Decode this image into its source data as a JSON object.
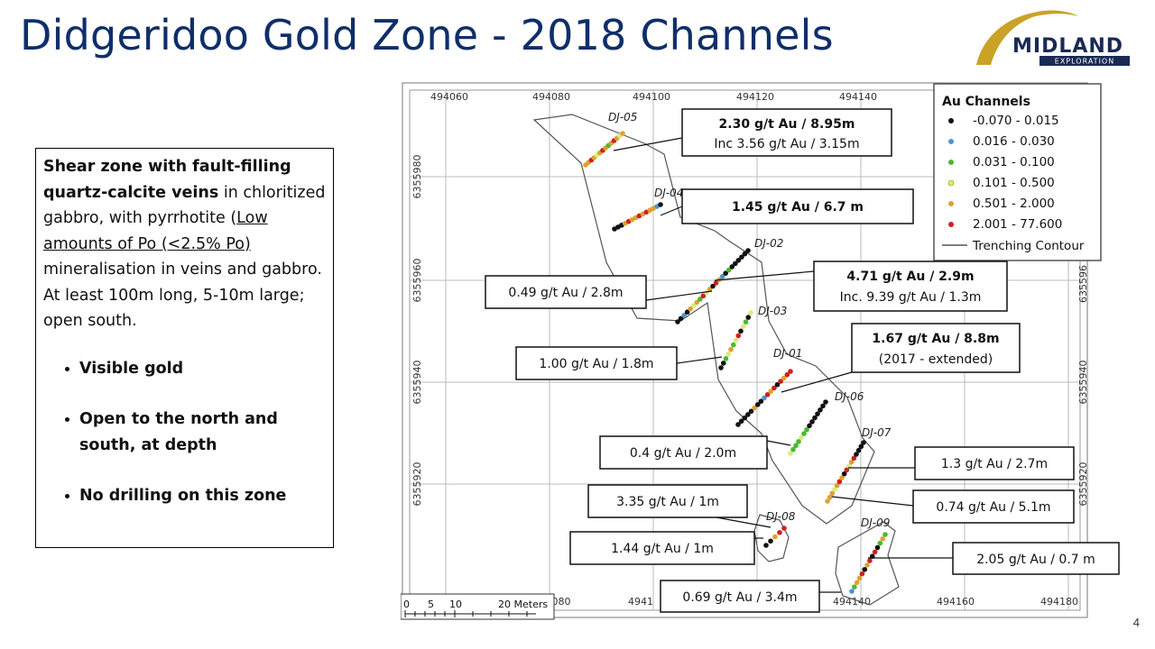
{
  "title": "Didgeridoo Gold Zone - 2018 Channels",
  "logo": {
    "brand_text": "MIDLAND",
    "sub_text": "EXPLORATION"
  },
  "description": {
    "bold_lead": "Shear zone with fault-filling quartz-calcite veins",
    "text_part1": " in chloritized gabbro, with pyrrhotite (",
    "underlined": "Low amounts of Po (<2.5% Po) ",
    "text_part2": "mineralisation in veins and gabbro. At least 100m long, 5-10m large; open south.",
    "bullets": [
      "Visible gold",
      "Open to the north and south, at depth",
      "No drilling on this zone"
    ]
  },
  "map": {
    "x_ticks_top": [
      "494060",
      "494080",
      "494100",
      "494120",
      "494140"
    ],
    "x_ticks_bottom": [
      "494140",
      "494160",
      "494180"
    ],
    "partial_x_labels": [
      "080",
      "4941"
    ],
    "y_ticks_left": [
      "6355980",
      "6355960",
      "6355940",
      "6355920"
    ],
    "y_ticks_right": [
      "6355940",
      "6355920"
    ],
    "right_partial_tick": "635596",
    "scale_bar": {
      "labels": [
        "0",
        "5",
        "10",
        "20 Meters"
      ]
    },
    "legend": {
      "title": "Au Channels",
      "items": [
        {
          "label": "-0.070 - 0.015",
          "color": "#111111"
        },
        {
          "label": "0.016 - 0.030",
          "color": "#4f94cd"
        },
        {
          "label": "0.031 - 0.100",
          "color": "#4cb82e"
        },
        {
          "label": "0.101 - 0.500",
          "color": "#d8ec7c"
        },
        {
          "label": "0.501 - 2.000",
          "color": "#e0a030"
        },
        {
          "label": "2.001 - 77.600",
          "color": "#d02020"
        }
      ],
      "contour_label": "Trenching Contour"
    },
    "channel_labels": [
      "DJ-05",
      "DJ-04",
      "DJ-02",
      "DJ-03",
      "DJ-01",
      "DJ-06",
      "DJ-07",
      "DJ-08",
      "DJ-09"
    ],
    "callouts": {
      "dj05_line1": "2.30 g/t Au / 8.95m",
      "dj05_line2": "Inc 3.56 g/t Au  / 3.15m",
      "dj04": "1.45 g/t Au / 6.7 m",
      "dj02_left": "0.49 g/t Au / 2.8m",
      "dj02_right_line1": "4.71 g/t Au / 2.9m",
      "dj02_right_line2": "Inc. 9.39 g/t Au / 1.3m",
      "dj03": "1.00 g/t Au / 1.8m",
      "dj01_line1": "1.67 g/t Au / 8.8m",
      "dj01_line2": "(2017 - extended)",
      "dj06": "0.4 g/t Au / 2.0m",
      "dj07_a": "1.3 g/t Au / 2.7m",
      "dj07_b": "0.74 g/t Au / 5.1m",
      "dj08_a": "3.35 g/t Au / 1m",
      "dj08_b": "1.44 g/t Au / 1m",
      "dj09_a": "2.05 g/t Au / 0.7 m",
      "dj09_b": "0.69 g/t Au / 3.4m"
    }
  },
  "page_number": "4"
}
